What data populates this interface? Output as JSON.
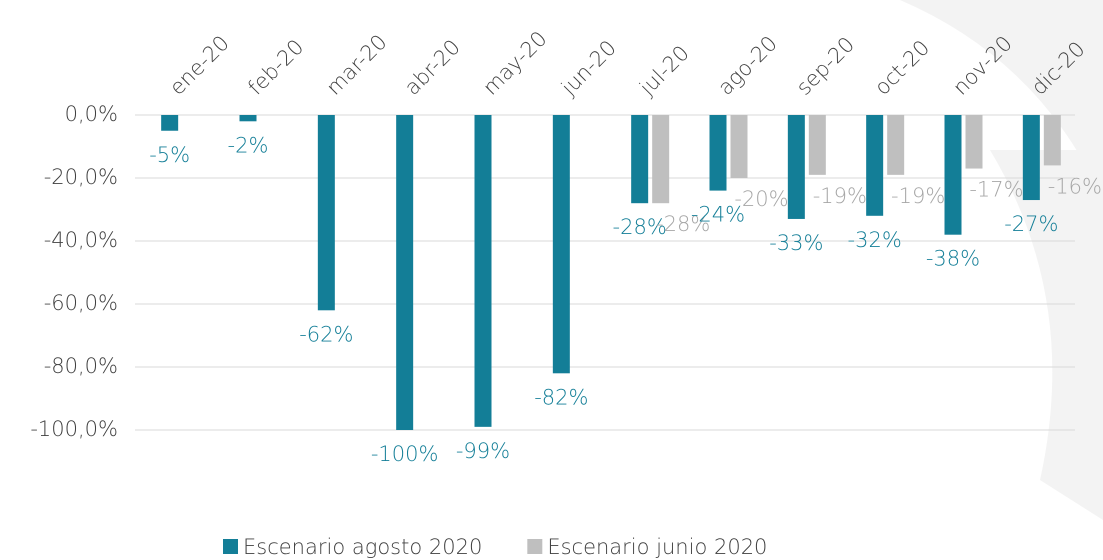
{
  "chart_data": {
    "type": "bar",
    "categories": [
      "ene-20",
      "feb-20",
      "mar-20",
      "abr-20",
      "may-20",
      "jun-20",
      "jul-20",
      "ago-20",
      "sep-20",
      "oct-20",
      "nov-20",
      "dic-20"
    ],
    "series": [
      {
        "name": "Escenario agosto 2020",
        "color": "#137e97",
        "values": [
          -5,
          -2,
          -62,
          -100,
          -99,
          -82,
          -28,
          -24,
          -33,
          -32,
          -38,
          -27
        ],
        "value_labels": [
          "-5%",
          "-2%",
          "-62%",
          "-100%",
          "-99%",
          "-82%",
          "-28%",
          "-24%",
          "-33%",
          "-32%",
          "-38%",
          "-27%"
        ]
      },
      {
        "name": "Escenario junio 2020",
        "color": "#bfbfbf",
        "values": [
          null,
          null,
          null,
          null,
          null,
          null,
          -28,
          -20,
          -19,
          -19,
          -17,
          -16
        ],
        "value_labels": [
          null,
          null,
          null,
          null,
          null,
          null,
          "-28%",
          "-20%",
          "-19%",
          "-19%",
          "-17%",
          "-16%"
        ]
      }
    ],
    "ylim": [
      -100,
      0
    ],
    "yticks": [
      {
        "value": 0,
        "label": "0,0%"
      },
      {
        "value": -20,
        "label": "-20,0%"
      },
      {
        "value": -40,
        "label": "-40,0%"
      },
      {
        "value": -60,
        "label": "-60,0%"
      },
      {
        "value": -80,
        "label": "-80,0%"
      },
      {
        "value": -100,
        "label": "-100,0%"
      }
    ],
    "grid": true,
    "legend": "bottom"
  }
}
